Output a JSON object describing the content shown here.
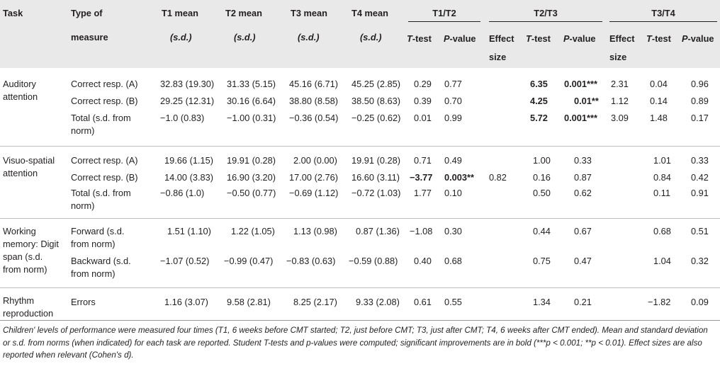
{
  "header": {
    "task": "Task",
    "type_line1": "Type of",
    "type_line2": "measure",
    "t1_mean": "T1 mean",
    "t2_mean": "T2 mean",
    "t3_mean": "T3 mean",
    "t4_mean": "T4 mean",
    "sd": "(s.d.)",
    "group_t1t2": "T1/T2",
    "group_t2t3": "T2/T3",
    "group_t3t4": "T3/T4",
    "ttest": "T-test",
    "pvalue": "P-value",
    "effect_line1": "Effect",
    "effect_line2": "size"
  },
  "rows": [
    {
      "task1": "Auditory",
      "task2": "attention",
      "measure1": "Correct resp. (A)",
      "measure2": "",
      "t1": "32.83 (19.30)",
      "t2": "31.33 (5.15)",
      "t3": "45.16 (6.71)",
      "t4": "45.25 (2.85)",
      "t12_t": "0.29",
      "t12_p": "0.77",
      "t23_es": "",
      "t23_t": "6.35",
      "t23_p": "0.001***",
      "t34_es": "2.31",
      "t34_t": "0.04",
      "t34_p": "0.96"
    },
    {
      "task1": "",
      "task2": "",
      "measure1": "Correct resp. (B)",
      "measure2": "",
      "t1": "29.25 (12.31)",
      "t2": "30.16 (6.64)",
      "t3": "38.80 (8.58)",
      "t4": "38.50 (8.63)",
      "t12_t": "0.39",
      "t12_p": "0.70",
      "t23_es": "",
      "t23_t": "4.25",
      "t23_p": "0.01**",
      "t34_es": "1.12",
      "t34_t": "0.14",
      "t34_p": "0.89"
    },
    {
      "task1": "",
      "task2": "",
      "measure1": "Total (s.d. from",
      "measure2": "norm)",
      "t1": "−1.0 (0.83)",
      "t2": "−1.00 (0.31)",
      "t3": "−0.36 (0.54)",
      "t4": "−0.25 (0.62)",
      "t12_t": "0.01",
      "t12_p": "0.99",
      "t23_es": "",
      "t23_t": "5.72",
      "t23_p": "0.001***",
      "t34_es": "3.09",
      "t34_t": "1.48",
      "t34_p": "0.17"
    },
    {
      "task1": "Visuo-spatial",
      "task2": "attention",
      "measure1": "Correct resp. (A)",
      "measure2": "",
      "t1": "19.66 (1.15)",
      "t2": "19.91 (0.28)",
      "t3": "2.00 (0.00)",
      "t4": "19.91 (0.28)",
      "t12_t": "0.71",
      "t12_p": "0.49",
      "t23_es": "",
      "t23_t": "1.00",
      "t23_p": "0.33",
      "t34_es": "",
      "t34_t": "1.01",
      "t34_p": "0.33"
    },
    {
      "task1": "",
      "task2": "",
      "measure1": "Correct resp. (B)",
      "measure2": "",
      "t1": "14.00 (3.83)",
      "t2": "16.90 (3.20)",
      "t3": "17.00 (2.76)",
      "t4": "16.60 (3.11)",
      "t12_t": "−3.77",
      "t12_p": "0.003**",
      "t23_es": "0.82",
      "t23_t": "0.16",
      "t23_p": "0.87",
      "t34_es": "",
      "t34_t": "0.84",
      "t34_p": "0.42"
    },
    {
      "task1": "",
      "task2": "",
      "measure1": "Total (s.d. from",
      "measure2": "norm)",
      "t1": "−0.86 (1.0)",
      "t2": "−0.50 (0.77)",
      "t3": "−0.69 (1.12)",
      "t4": "−0.72 (1.03)",
      "t12_t": "1.77",
      "t12_p": "0.10",
      "t23_es": "",
      "t23_t": "0.50",
      "t23_p": "0.62",
      "t34_es": "",
      "t34_t": "0.11",
      "t34_p": "0.91"
    },
    {
      "task1": "Working",
      "task2": "memory: Digit",
      "task3": "span (s.d.",
      "task4": "from norm)",
      "measure1": "Forward (s.d.",
      "measure2": "from norm)",
      "t1": "1.51 (1.10)",
      "t2": "1.22 (1.05)",
      "t3": "1.13 (0.98)",
      "t4": "0.87 (1.36)",
      "t12_t": "−1.08",
      "t12_p": "0.30",
      "t23_es": "",
      "t23_t": "0.44",
      "t23_p": "0.67",
      "t34_es": "",
      "t34_t": "0.68",
      "t34_p": "0.51"
    },
    {
      "task1": "",
      "task2": "",
      "measure1": "Backward (s.d.",
      "measure2": "from norm)",
      "t1": "−1.07 (0.52)",
      "t2": "−0.99 (0.47)",
      "t3": "−0.83 (0.63)",
      "t4": "−0.59 (0.88)",
      "t12_t": "0.40",
      "t12_p": "0.68",
      "t23_es": "",
      "t23_t": "0.75",
      "t23_p": "0.47",
      "t34_es": "",
      "t34_t": "1.04",
      "t34_p": "0.32"
    },
    {
      "task1": "Rhythm",
      "task2": "reproduction",
      "measure1": "Errors",
      "measure2": "",
      "t1": "1.16 (3.07)",
      "t2": "9.58 (2.81)",
      "t3": "8.25 (2.17)",
      "t4": "9.33 (2.08)",
      "t12_t": "0.61",
      "t12_p": "0.55",
      "t23_es": "",
      "t23_t": "1.34",
      "t23_p": "0.21",
      "t34_es": "",
      "t34_t": "−1.82",
      "t34_p": "0.09"
    }
  ],
  "footnote": "Children' levels of performance were measured four times (T1, 6 weeks before CMT started; T2, just before CMT; T3, just after CMT; T4, 6 weeks after CMT ended). Mean and standard deviation or s.d. from norms (when indicated) for each task are reported. Student T-tests and p-values were computed; significant improvements are in bold (***p < 0.001; **p < 0.01). Effect sizes are also reported when relevant (Cohen's d)."
}
